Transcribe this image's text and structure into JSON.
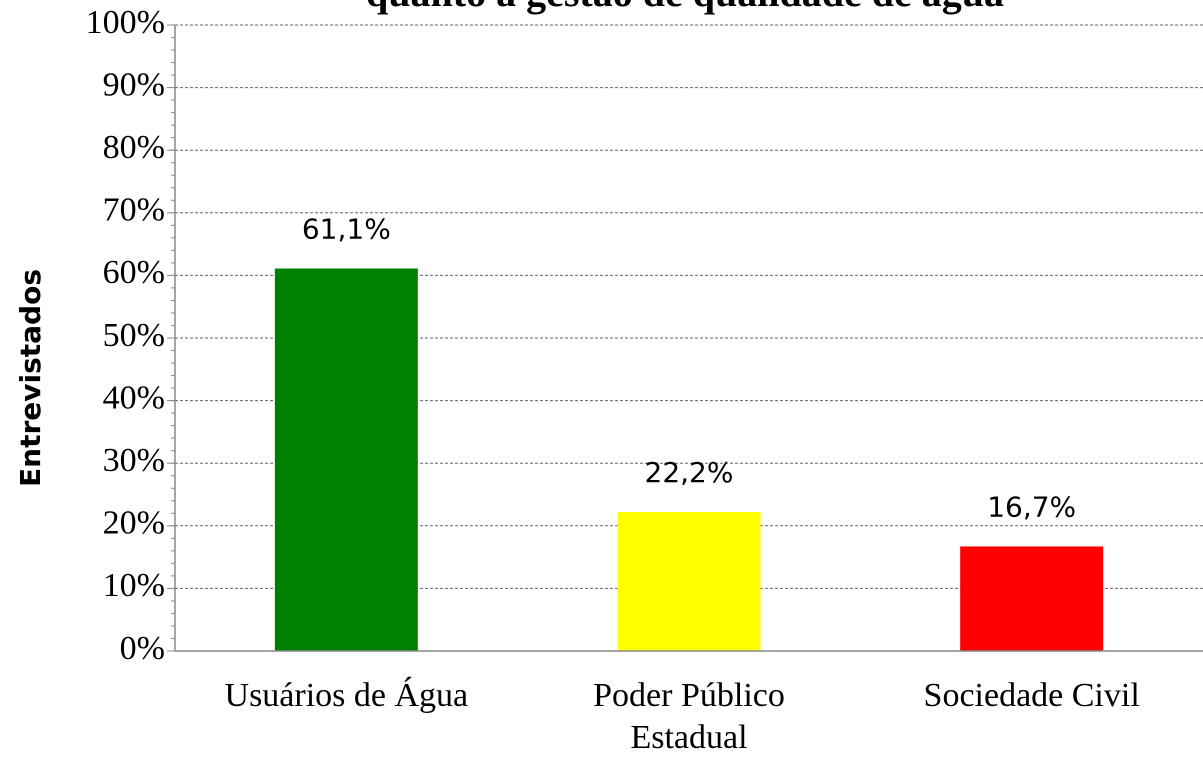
{
  "chart_data": {
    "type": "bar",
    "title": "quanto a gestão de qualidade de água",
    "y_label": "Entrevistados",
    "categories": [
      "Usuários de Água",
      "Poder Público Estadual",
      "Sociedade Civil"
    ],
    "values": [
      61.1,
      22.2,
      16.7
    ],
    "value_labels": [
      "61,1%",
      "22,2%",
      "16,7%"
    ],
    "colors": [
      "#008000",
      "#ffff00",
      "#ff0000"
    ],
    "ylim": [
      0,
      100
    ],
    "yticks": [
      {
        "value": 0,
        "label": "0%"
      },
      {
        "value": 10,
        "label": "10%"
      },
      {
        "value": 20,
        "label": "20%"
      },
      {
        "value": 30,
        "label": "30%"
      },
      {
        "value": 40,
        "label": "40%"
      },
      {
        "value": 50,
        "label": "50%"
      },
      {
        "value": 60,
        "label": "60%"
      },
      {
        "value": 70,
        "label": "70%"
      },
      {
        "value": 80,
        "label": "80%"
      },
      {
        "value": 90,
        "label": "90%"
      },
      {
        "value": 100,
        "label": "100%"
      }
    ],
    "grid": true
  }
}
